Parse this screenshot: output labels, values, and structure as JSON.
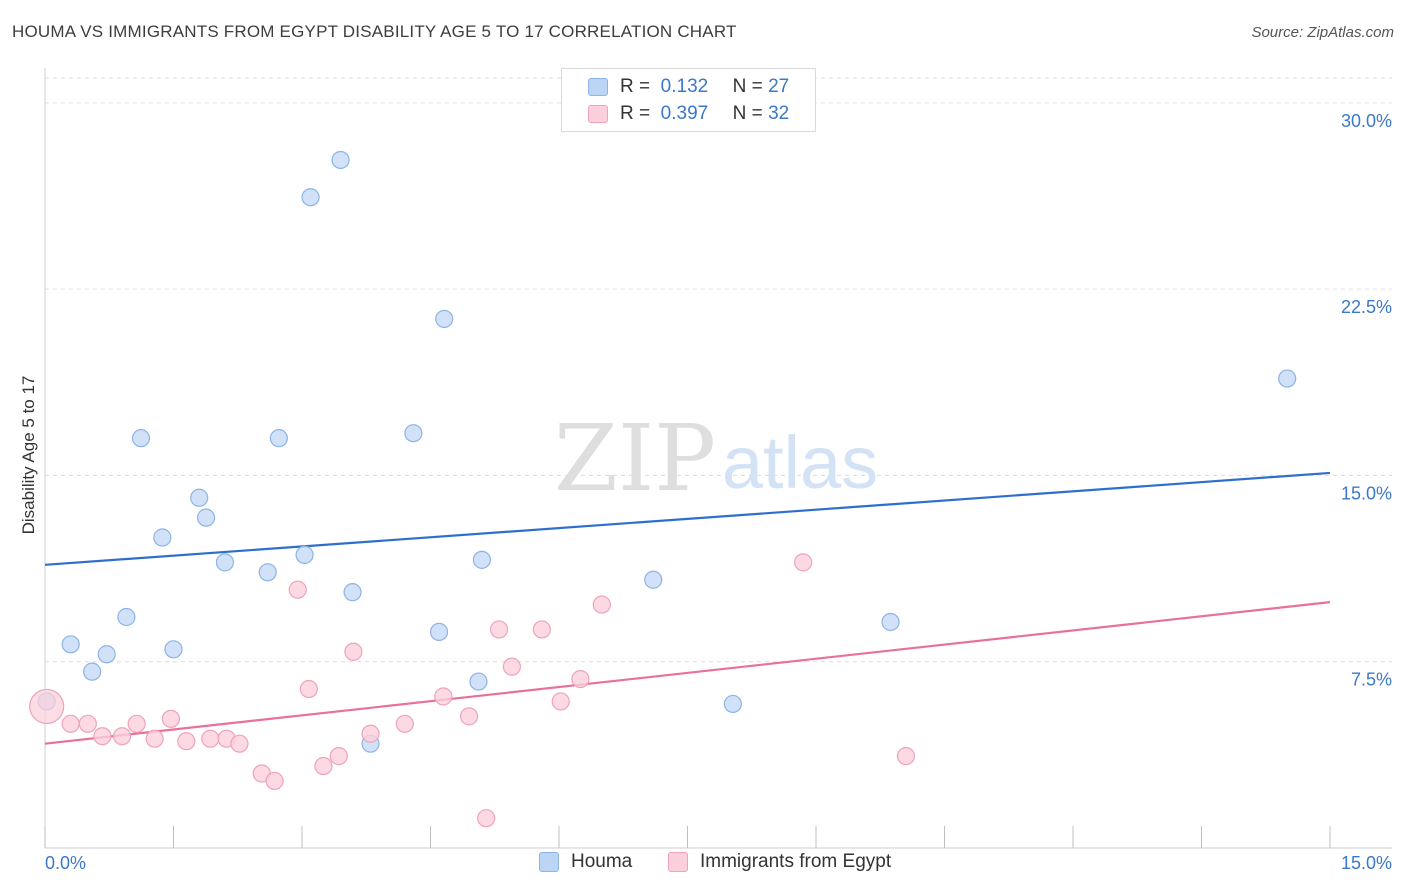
{
  "header": {
    "title": "HOUMA VS IMMIGRANTS FROM EGYPT DISABILITY AGE 5 TO 17 CORRELATION CHART",
    "source": "Source: ZipAtlas.com"
  },
  "watermark": {
    "zip": "ZIP",
    "atlas": "atlas"
  },
  "legend": {
    "r_label": "R =",
    "n_label": "N =",
    "rows": [
      {
        "r": "0.132",
        "n": "27",
        "color": "#a9c8f0"
      },
      {
        "r": "0.397",
        "n": "32",
        "color": "#f7bccc"
      }
    ]
  },
  "colors": {
    "houma_fill": "#c5daf5",
    "houma_stroke": "#8db4e6",
    "houma_line": "#2f6fcc",
    "egypt_fill": "#fbd0dc",
    "egypt_stroke": "#eea3b8",
    "egypt_line": "#e8709a",
    "tick_label": "#3a78c9",
    "grid": "#dcdcdc"
  },
  "chart_data": {
    "type": "scatter",
    "xlabel": "",
    "ylabel": "Disability Age 5 to 17",
    "xlim": [
      0,
      15
    ],
    "ylim": [
      0,
      31
    ],
    "x_tick_labels": [
      "0.0%",
      "15.0%"
    ],
    "y_ticks": [
      7.5,
      15.0,
      22.5,
      30.0
    ],
    "y_tick_labels": [
      "7.5%",
      "15.0%",
      "22.5%",
      "30.0%"
    ],
    "grid": true,
    "series": [
      {
        "name": "Houma",
        "points": [
          [
            0.02,
            5.9
          ],
          [
            0.3,
            8.2
          ],
          [
            0.55,
            7.1
          ],
          [
            0.72,
            7.8
          ],
          [
            0.95,
            9.3
          ],
          [
            1.12,
            16.5
          ],
          [
            1.37,
            12.5
          ],
          [
            1.5,
            8.0
          ],
          [
            1.8,
            14.1
          ],
          [
            1.88,
            13.3
          ],
          [
            2.1,
            11.5
          ],
          [
            2.6,
            11.1
          ],
          [
            2.73,
            16.5
          ],
          [
            3.1,
            26.2
          ],
          [
            3.03,
            11.8
          ],
          [
            3.45,
            27.7
          ],
          [
            3.59,
            10.3
          ],
          [
            3.8,
            4.2
          ],
          [
            4.3,
            16.7
          ],
          [
            4.66,
            21.3
          ],
          [
            4.6,
            8.7
          ],
          [
            5.06,
            6.7
          ],
          [
            5.1,
            11.6
          ],
          [
            7.1,
            10.8
          ],
          [
            8.03,
            5.8
          ],
          [
            9.87,
            9.1
          ],
          [
            14.5,
            18.9
          ]
        ],
        "trend": [
          [
            0,
            11.4
          ],
          [
            15,
            15.1
          ]
        ]
      },
      {
        "name": "Immigrants from Egypt",
        "points": [
          [
            0.02,
            5.7
          ],
          [
            0.3,
            5.0
          ],
          [
            0.5,
            5.0
          ],
          [
            0.67,
            4.5
          ],
          [
            0.9,
            4.5
          ],
          [
            1.07,
            5.0
          ],
          [
            1.28,
            4.4
          ],
          [
            1.47,
            5.2
          ],
          [
            1.65,
            4.3
          ],
          [
            1.93,
            4.4
          ],
          [
            2.12,
            4.4
          ],
          [
            2.27,
            4.2
          ],
          [
            2.53,
            3.0
          ],
          [
            2.68,
            2.7
          ],
          [
            2.95,
            10.4
          ],
          [
            3.08,
            6.4
          ],
          [
            3.25,
            3.3
          ],
          [
            3.43,
            3.7
          ],
          [
            3.6,
            7.9
          ],
          [
            3.8,
            4.6
          ],
          [
            4.2,
            5.0
          ],
          [
            4.65,
            6.1
          ],
          [
            4.95,
            5.3
          ],
          [
            5.15,
            1.2
          ],
          [
            5.3,
            8.8
          ],
          [
            5.45,
            7.3
          ],
          [
            5.8,
            8.8
          ],
          [
            6.02,
            5.9
          ],
          [
            6.25,
            6.8
          ],
          [
            6.5,
            9.8
          ],
          [
            8.85,
            11.5
          ],
          [
            10.05,
            3.7
          ]
        ],
        "trend": [
          [
            0,
            4.2
          ],
          [
            15,
            9.9
          ]
        ]
      }
    ]
  }
}
